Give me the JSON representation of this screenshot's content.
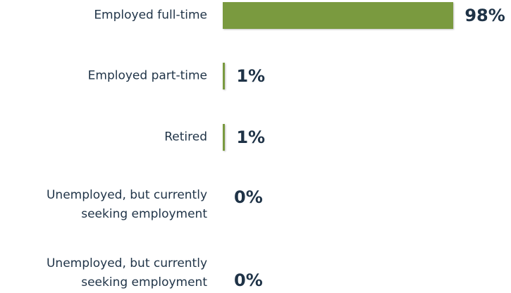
{
  "chart_data": {
    "type": "bar",
    "orientation": "horizontal",
    "categories": [
      "Employed full-time",
      "Employed part-time",
      "Retired",
      "Unemployed, but currently seeking employment",
      "Unemployed, but currently seeking employment"
    ],
    "values": [
      98,
      1,
      1,
      0,
      0
    ],
    "value_labels": [
      "98%",
      "1%",
      "1%",
      "0%",
      "0%"
    ],
    "color": "#7a9a3f",
    "xlim": [
      0,
      100
    ]
  }
}
